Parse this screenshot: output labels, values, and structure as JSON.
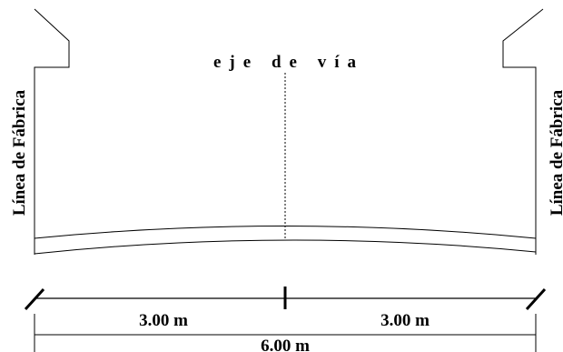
{
  "labels": {
    "axis": "eje de vía",
    "left_boundary": "Línea de Fábrica",
    "right_boundary": "Línea de Fábrica",
    "left_half_width": "3.00 m",
    "right_half_width": "3.00 m",
    "total_width": "6.00 m"
  }
}
